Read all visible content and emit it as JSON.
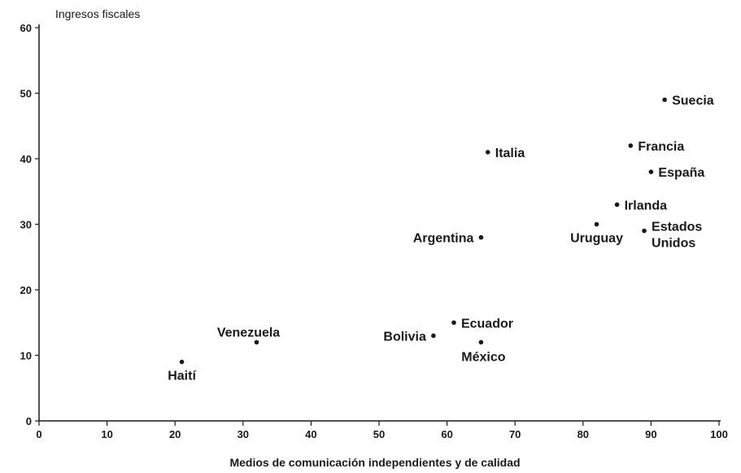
{
  "chart_data": {
    "type": "scatter",
    "title": "",
    "ylabel": "Ingresos fiscales",
    "xlabel": "Medios de comunicación independientes y de calidad",
    "xlim": [
      0,
      100
    ],
    "ylim": [
      0,
      60
    ],
    "xticks": [
      0,
      10,
      20,
      30,
      40,
      50,
      60,
      70,
      80,
      90,
      100
    ],
    "yticks": [
      0,
      10,
      20,
      30,
      40,
      50,
      60
    ],
    "grid": false,
    "points": [
      {
        "label": [
          "Haití"
        ],
        "x": 21,
        "y": 9,
        "label_pos": "below-left"
      },
      {
        "label": [
          "Venezuela"
        ],
        "x": 32,
        "y": 12,
        "label_pos": "above-left"
      },
      {
        "label": [
          "Bolivia"
        ],
        "x": 58,
        "y": 13,
        "label_pos": "left"
      },
      {
        "label": [
          "Ecuador"
        ],
        "x": 61,
        "y": 15,
        "label_pos": "right"
      },
      {
        "label": [
          "México"
        ],
        "x": 65,
        "y": 12,
        "label_pos": "below"
      },
      {
        "label": [
          "Argentina"
        ],
        "x": 65,
        "y": 28,
        "label_pos": "left"
      },
      {
        "label": [
          "Italia"
        ],
        "x": 66,
        "y": 41,
        "label_pos": "right"
      },
      {
        "label": [
          "Uruguay"
        ],
        "x": 82,
        "y": 30,
        "label_pos": "below-left"
      },
      {
        "label": [
          "Irlanda"
        ],
        "x": 85,
        "y": 33,
        "label_pos": "right"
      },
      {
        "label": [
          "Francia"
        ],
        "x": 87,
        "y": 42,
        "label_pos": "right"
      },
      {
        "label": [
          "Estados",
          "Unidos"
        ],
        "x": 89,
        "y": 29,
        "label_pos": "right"
      },
      {
        "label": [
          "España"
        ],
        "x": 90,
        "y": 38,
        "label_pos": "right"
      },
      {
        "label": [
          "Suecia"
        ],
        "x": 92,
        "y": 49,
        "label_pos": "right"
      }
    ]
  }
}
